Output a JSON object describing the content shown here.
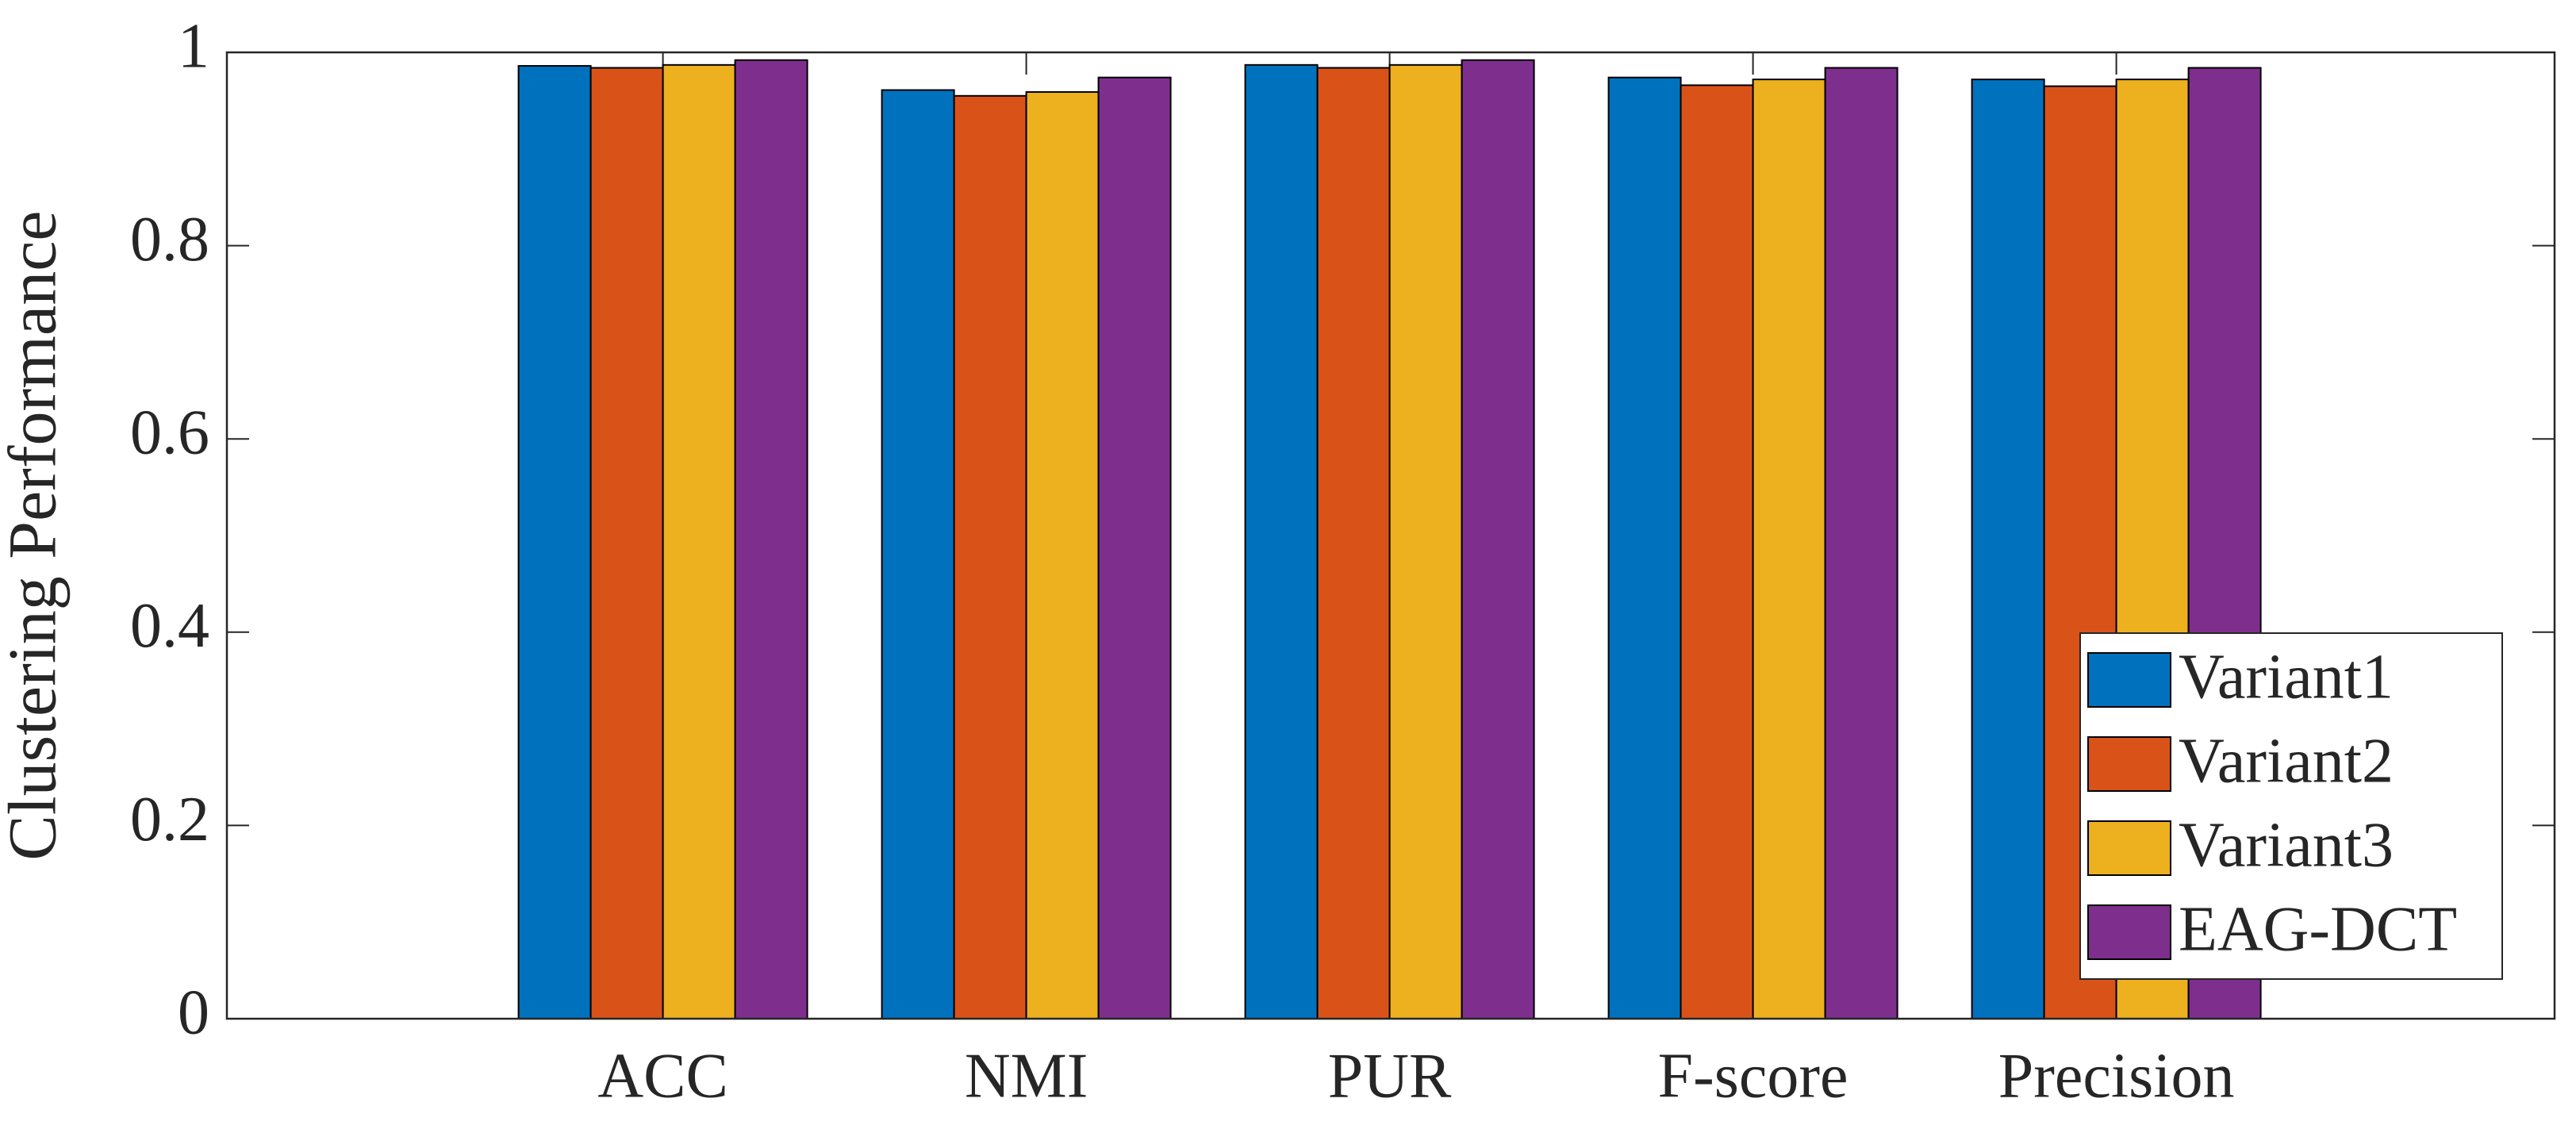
{
  "chart_data": {
    "type": "bar",
    "y_label": "Clustering Performance",
    "categories": [
      "ACC",
      "NMI",
      "PUR",
      "F-score",
      "Precision"
    ],
    "series": [
      {
        "name": "Variant1",
        "color": "#0072BD",
        "values": [
          0.986,
          0.961,
          0.987,
          0.974,
          0.972
        ]
      },
      {
        "name": "Variant2",
        "color": "#D95319",
        "values": [
          0.984,
          0.955,
          0.984,
          0.966,
          0.965
        ]
      },
      {
        "name": "Variant3",
        "color": "#EDB120",
        "values": [
          0.987,
          0.959,
          0.987,
          0.972,
          0.972
        ]
      },
      {
        "name": "EAG-DCT",
        "color": "#7E2F8E",
        "values": [
          0.992,
          0.974,
          0.992,
          0.984,
          0.984
        ]
      }
    ],
    "ylim": [
      0,
      1
    ],
    "yticks": [
      0,
      0.2,
      0.4,
      0.6,
      0.8,
      1
    ],
    "legend": "lower right"
  }
}
